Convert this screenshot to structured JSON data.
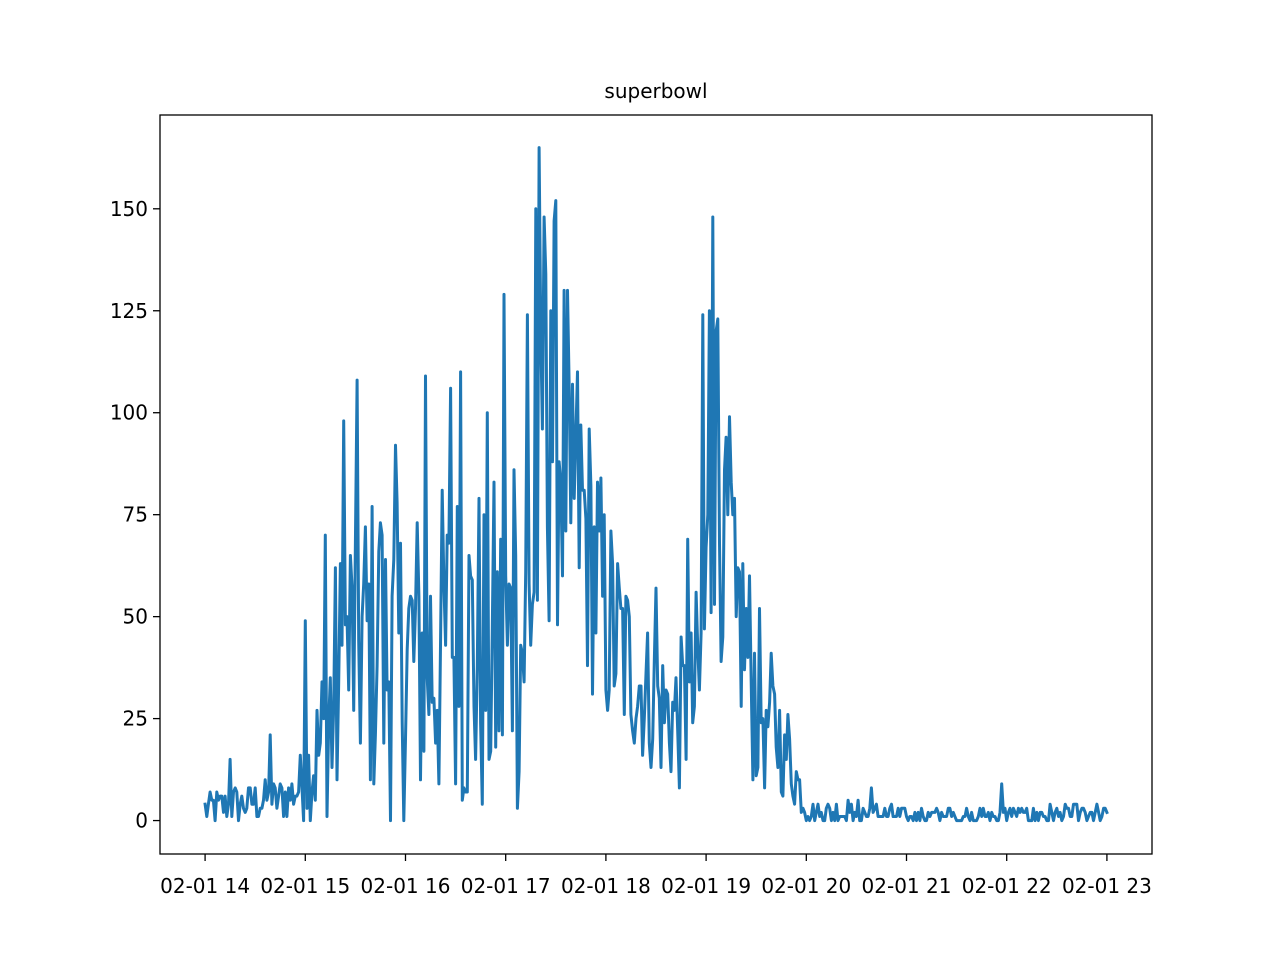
{
  "chart_data": {
    "type": "line",
    "title": "superbowl",
    "xlabel": "",
    "ylabel": "",
    "x_tick_labels": [
      "02-01 14",
      "02-01 15",
      "02-01 16",
      "02-01 17",
      "02-01 18",
      "02-01 19",
      "02-01 20",
      "02-01 21",
      "02-01 22",
      "02-01 23"
    ],
    "y_tick_labels": [
      "0",
      "25",
      "50",
      "75",
      "100",
      "125",
      "150"
    ],
    "y_ticks": [
      0,
      25,
      50,
      75,
      100,
      125,
      150
    ],
    "xlim_hours": [
      13.55,
      23.45
    ],
    "ylim": [
      -8.2,
      173
    ],
    "grid": false,
    "series": [
      {
        "color": "#1f77b4",
        "x_hours": [
          14.0,
          14.33,
          14.67,
          14.85,
          15.0,
          15.2,
          15.3,
          15.5,
          15.7,
          15.9,
          16.0,
          16.2,
          16.5,
          16.8,
          17.0,
          17.2,
          17.3,
          17.4,
          17.5,
          17.7,
          18.0,
          18.3,
          18.5,
          18.7,
          18.85,
          18.95,
          19.1,
          19.3,
          19.5,
          19.7,
          19.85,
          20.0,
          20.4,
          21.0,
          21.5,
          22.0,
          22.5,
          23.0
        ],
        "baseline": [
          3,
          4,
          5,
          6,
          10,
          20,
          30,
          45,
          42,
          38,
          40,
          40,
          42,
          40,
          40,
          45,
          65,
          95,
          100,
          80,
          50,
          35,
          28,
          25,
          27,
          35,
          88,
          55,
          30,
          22,
          15,
          2,
          2,
          1,
          1,
          1,
          1,
          1
        ],
        "amplitude": [
          4,
          5,
          5,
          6,
          10,
          25,
          35,
          40,
          40,
          40,
          40,
          40,
          45,
          45,
          45,
          40,
          40,
          50,
          55,
          40,
          30,
          20,
          18,
          18,
          22,
          30,
          45,
          30,
          25,
          15,
          12,
          2,
          4,
          2,
          3,
          3,
          3,
          3
        ],
        "peaks": [
          {
            "x_hour": 14.25,
            "y": 15
          },
          {
            "x_hour": 14.65,
            "y": 21
          },
          {
            "x_hour": 15.0,
            "y": 49
          },
          {
            "x_hour": 15.2,
            "y": 70
          },
          {
            "x_hour": 15.38,
            "y": 98
          },
          {
            "x_hour": 15.52,
            "y": 108
          },
          {
            "x_hour": 15.75,
            "y": 73
          },
          {
            "x_hour": 15.9,
            "y": 92
          },
          {
            "x_hour": 16.2,
            "y": 109
          },
          {
            "x_hour": 16.45,
            "y": 106
          },
          {
            "x_hour": 16.55,
            "y": 110
          },
          {
            "x_hour": 16.82,
            "y": 100
          },
          {
            "x_hour": 16.98,
            "y": 129
          },
          {
            "x_hour": 17.08,
            "y": 86
          },
          {
            "x_hour": 17.22,
            "y": 124
          },
          {
            "x_hour": 17.3,
            "y": 150
          },
          {
            "x_hour": 17.34,
            "y": 165
          },
          {
            "x_hour": 17.38,
            "y": 148
          },
          {
            "x_hour": 17.45,
            "y": 125
          },
          {
            "x_hour": 17.65,
            "y": 73
          },
          {
            "x_hour": 17.92,
            "y": 83
          },
          {
            "x_hour": 18.5,
            "y": 57
          },
          {
            "x_hour": 18.82,
            "y": 69
          },
          {
            "x_hour": 18.97,
            "y": 124
          },
          {
            "x_hour": 19.03,
            "y": 125
          },
          {
            "x_hour": 19.07,
            "y": 148
          },
          {
            "x_hour": 19.12,
            "y": 123
          },
          {
            "x_hour": 19.18,
            "y": 86
          },
          {
            "x_hour": 19.3,
            "y": 50
          },
          {
            "x_hour": 19.6,
            "y": 27
          },
          {
            "x_hour": 19.78,
            "y": 21
          },
          {
            "x_hour": 20.65,
            "y": 8
          },
          {
            "x_hour": 21.95,
            "y": 9
          }
        ]
      }
    ]
  }
}
